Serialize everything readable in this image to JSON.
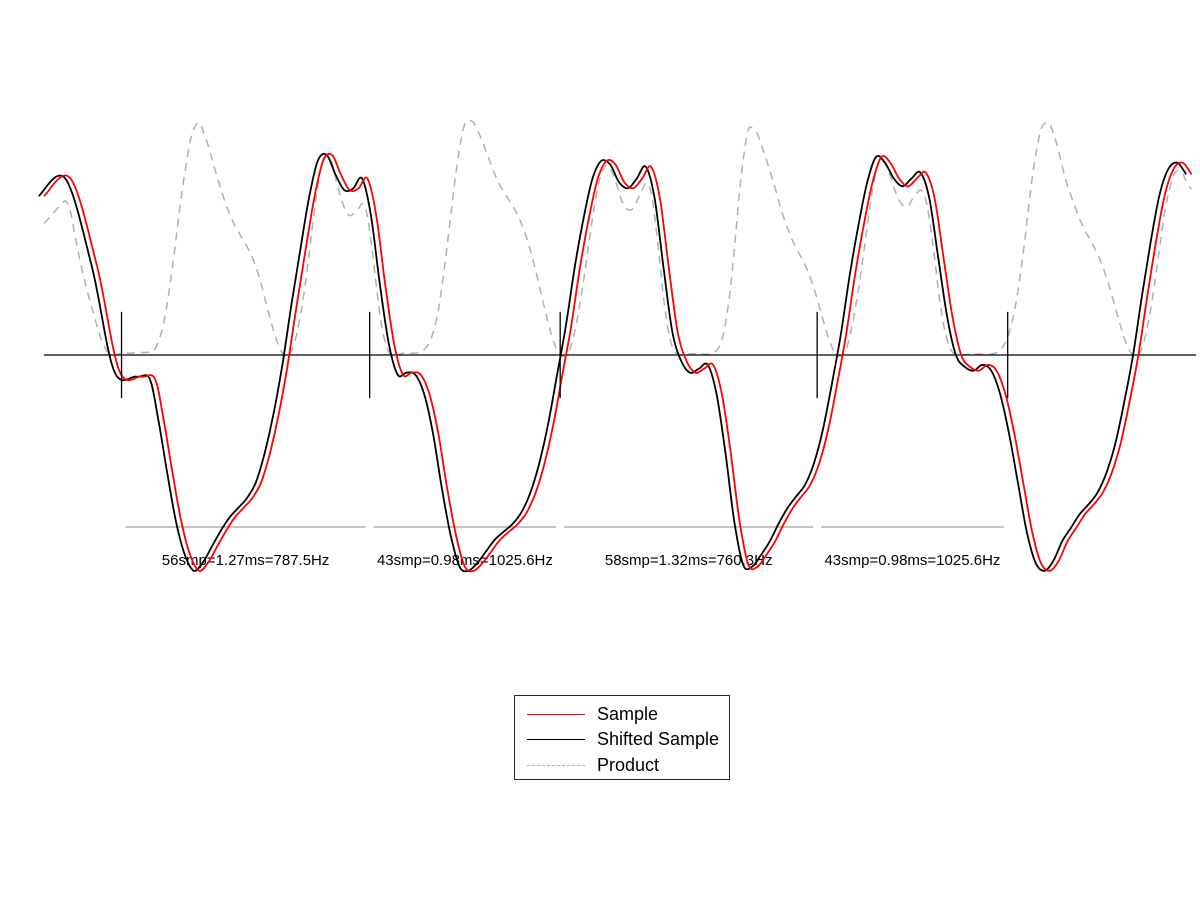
{
  "chart_data": {
    "type": "line",
    "title": "",
    "xlabel": "",
    "ylabel": "",
    "grid": false,
    "legend_position": "bottom-center",
    "xlim": [
      0,
      260
    ],
    "ylim": [
      -1.3,
      1.3
    ],
    "series": [
      {
        "name": "Sample",
        "color": "#ff0000",
        "style": "solid",
        "x": [
          0,
          6,
          12,
          17,
          22,
          25,
          27,
          29,
          31,
          33,
          35,
          37,
          39,
          41,
          43,
          45,
          47,
          49,
          51,
          53,
          55,
          57,
          59,
          61,
          63,
          65,
          67,
          69,
          71,
          73,
          75,
          77,
          79,
          81,
          83,
          85,
          87,
          89,
          91,
          93,
          95,
          97,
          99,
          101,
          103,
          105,
          107,
          109,
          111,
          113,
          115,
          117,
          119,
          121,
          123,
          125,
          127,
          129,
          131,
          133,
          135,
          137,
          139,
          141,
          143,
          145,
          147,
          149,
          151,
          153,
          155,
          157,
          159,
          161,
          163,
          165,
          167,
          169,
          171,
          173,
          175,
          177,
          179,
          181,
          183,
          185,
          187,
          189,
          191,
          193,
          195,
          197,
          199,
          201,
          203,
          205,
          207,
          209,
          211,
          213,
          215,
          217,
          219,
          221,
          223,
          225,
          227,
          229,
          231,
          233,
          235,
          237,
          239,
          241,
          243,
          245,
          247,
          249,
          251,
          253,
          255,
          257,
          259
        ],
        "y": [
          0.81,
          0.9,
          0.45,
          -0.08,
          -0.11,
          -0.12,
          -0.33,
          -0.6,
          -0.85,
          -1.02,
          -1.1,
          -1.06,
          -0.98,
          -0.9,
          -0.83,
          -0.78,
          -0.73,
          -0.65,
          -0.5,
          -0.3,
          -0.05,
          0.25,
          0.53,
          0.8,
          0.99,
          1.02,
          0.92,
          0.84,
          0.85,
          0.9,
          0.71,
          0.36,
          0.06,
          -0.1,
          -0.09,
          -0.1,
          -0.2,
          -0.4,
          -0.68,
          -0.92,
          -1.08,
          -1.1,
          -1.06,
          -1.0,
          -0.94,
          -0.9,
          -0.86,
          -0.8,
          -0.7,
          -0.55,
          -0.35,
          -0.1,
          0.15,
          0.45,
          0.7,
          0.9,
          0.99,
          0.97,
          0.88,
          0.85,
          0.9,
          0.96,
          0.8,
          0.45,
          0.12,
          -0.03,
          -0.09,
          -0.07,
          -0.05,
          -0.2,
          -0.5,
          -0.85,
          -1.07,
          -1.08,
          -1.02,
          -0.95,
          -0.86,
          -0.78,
          -0.72,
          -0.66,
          -0.55,
          -0.38,
          -0.15,
          0.1,
          0.4,
          0.66,
          0.88,
          1.01,
          0.98,
          0.9,
          0.86,
          0.9,
          0.93,
          0.8,
          0.5,
          0.2,
          0.0,
          -0.06,
          -0.08,
          -0.05,
          -0.08,
          -0.2,
          -0.4,
          -0.65,
          -0.9,
          -1.06,
          -1.1,
          -1.05,
          -0.95,
          -0.88,
          -0.81,
          -0.76,
          -0.7,
          -0.6,
          -0.45,
          -0.24,
          0.0,
          0.3,
          0.58,
          0.82,
          0.95,
          0.98,
          0.92
        ]
      },
      {
        "name": "Shifted Sample",
        "color": "#000000",
        "style": "solid"
      },
      {
        "name": "Product",
        "color": "#b0b0b0",
        "style": "dashed"
      }
    ],
    "shift": 1.2,
    "zero_line": 0,
    "zero_crossings": [
      17.5,
      73.5,
      116.5,
      174.5,
      217.5
    ],
    "tick_half_height": 0.22,
    "periods": [
      {
        "label": "56smp=1.27ms=787.5Hz"
      },
      {
        "label": "43smp=0.98ms=1025.6Hz"
      },
      {
        "label": "58smp=1.32ms=760.3Hz"
      },
      {
        "label": "43smp=0.98ms=1025.6Hz"
      }
    ]
  }
}
